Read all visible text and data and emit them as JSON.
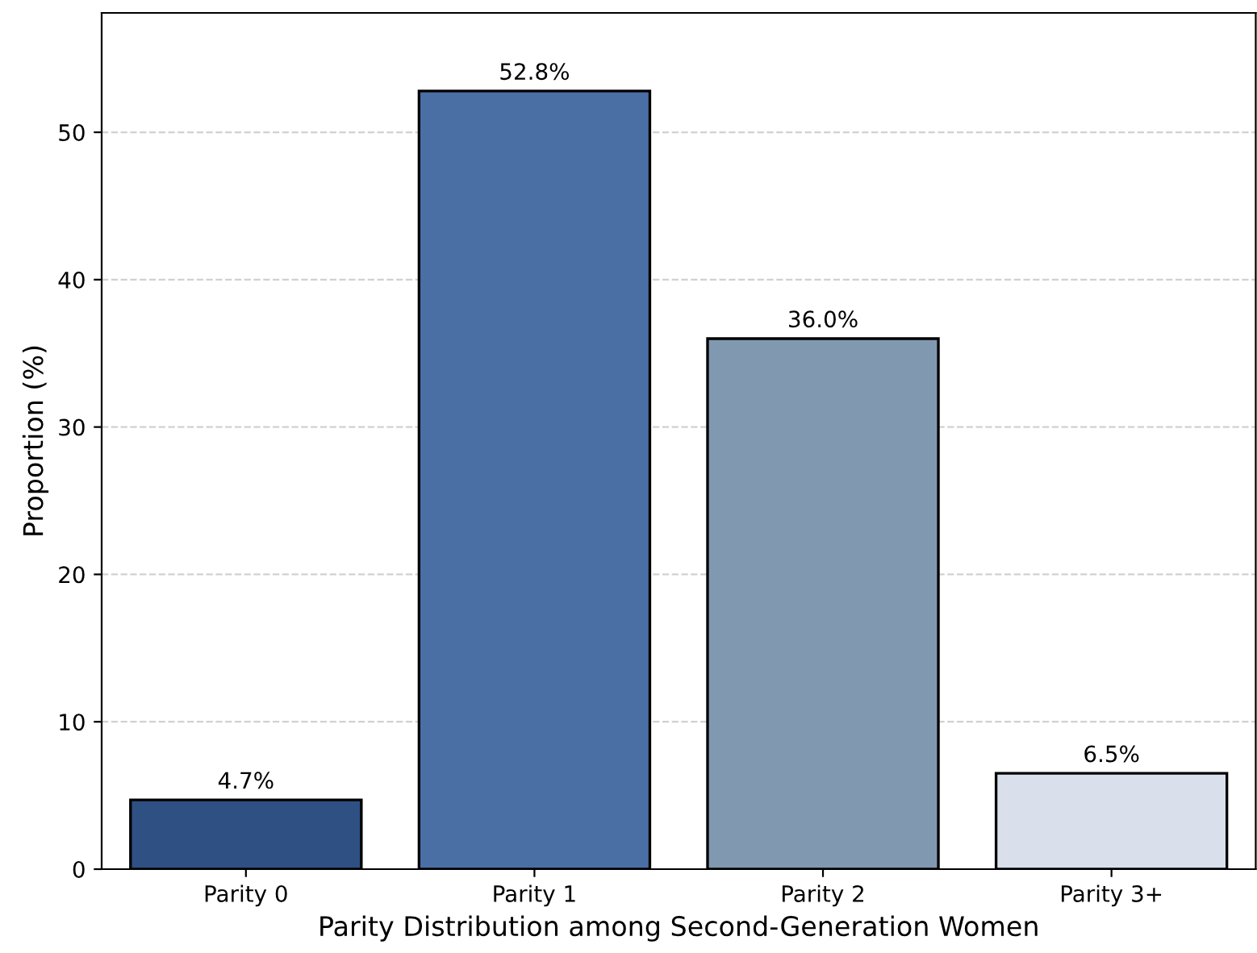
{
  "chart_data": {
    "type": "bar",
    "xlabel": "Parity Distribution among Second-Generation Women",
    "ylabel": "Proportion (%)",
    "categories": [
      "Parity 0",
      "Parity 1",
      "Parity 2",
      "Parity 3+"
    ],
    "values": [
      4.7,
      52.8,
      36.0,
      6.5
    ],
    "colors": [
      "#2e5083",
      "#4a6fa5",
      "#8199b0",
      "#d9e0ec"
    ],
    "value_labels": [
      "4.7%",
      "52.8%",
      "36.0%",
      "6.5%"
    ],
    "ylim": [
      0,
      58.1
    ],
    "yticks": [
      0,
      10,
      20,
      30,
      40,
      50
    ],
    "grid": "y"
  }
}
